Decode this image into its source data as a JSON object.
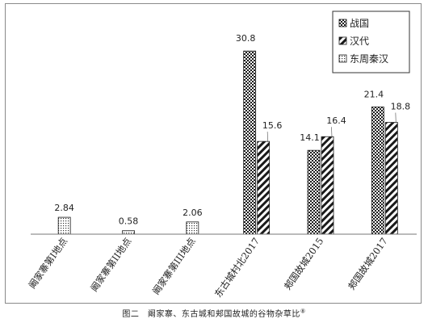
{
  "caption": {
    "text": "图二　阚家寨、东古城和郏国故城的谷物杂草比",
    "superscript": "⑧"
  },
  "chart_data": {
    "type": "bar",
    "title": "",
    "xlabel": "",
    "ylabel": "",
    "y_axis_visible": false,
    "grid": false,
    "legend_position": "top-right",
    "ylim": [
      0,
      33
    ],
    "categories": [
      "阚家寨第I地点",
      "阚家寨第II地点",
      "阚家寨第III地点",
      "东古城村北2017",
      "郏国故城2015",
      "郏国故城2017"
    ],
    "series": [
      {
        "name": "战国",
        "pattern": "crosshatch",
        "color": "#1a1a1a",
        "values": [
          null,
          null,
          null,
          30.8,
          14.1,
          21.4
        ],
        "labels": [
          "",
          "",
          "",
          "30.8",
          "14.1",
          "21.4"
        ]
      },
      {
        "name": "汉代",
        "pattern": "diagonal-stripes",
        "color": "#1a1a1a",
        "values": [
          null,
          null,
          null,
          15.6,
          16.4,
          18.8
        ],
        "labels": [
          "",
          "",
          "",
          "15.6",
          "16.4",
          "18.8"
        ]
      },
      {
        "name": "东周秦汉",
        "pattern": "dots",
        "color": "#1a1a1a",
        "values": [
          2.84,
          0.58,
          2.06,
          null,
          null,
          null
        ],
        "labels": [
          "2.84",
          "0.58",
          "2.06",
          "",
          "",
          ""
        ]
      }
    ]
  }
}
